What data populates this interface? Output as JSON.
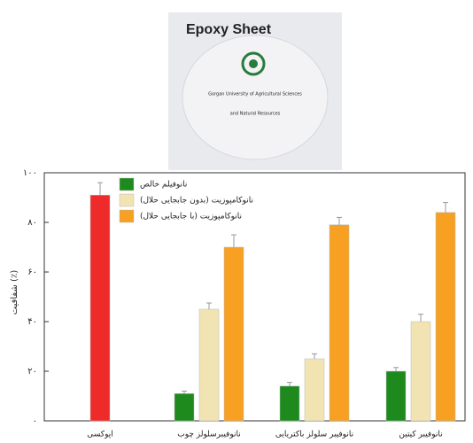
{
  "photo": {
    "title": "Epoxy Sheet",
    "caption": [
      "Gorgan University of Agricultural Sciences",
      "and Natural Resources"
    ]
  },
  "chart_data": {
    "type": "bar",
    "y_label": "شفافیت (٪)",
    "categories": [
      "اپوکسی",
      "نانوفیبرسلولز چوب",
      "نانوفیبر سلولز باکتریایی",
      "نانوفیبر کیتین"
    ],
    "epoxy": {
      "value": 91,
      "error": 5,
      "color": "#ee2a2a"
    },
    "series": [
      {
        "name": "نانوفیلم خالص",
        "color": "#1e8a1e",
        "values": [
          null,
          11,
          14,
          20
        ],
        "errors": [
          null,
          1,
          1.5,
          1.5
        ]
      },
      {
        "name": "(بدون جابجایی حلال) نانوکامپوزیت",
        "color": "#f1e3b2",
        "values": [
          null,
          45,
          25,
          40
        ],
        "errors": [
          null,
          2.5,
          2,
          3
        ]
      },
      {
        "name": "(با جابجایی حلال) نانوکامپوزیت",
        "color": "#f7a021",
        "values": [
          null,
          70,
          79,
          84
        ],
        "errors": [
          null,
          5,
          3,
          4
        ]
      }
    ],
    "ylim": [
      0,
      100
    ],
    "yticks": [
      {
        "value": 0,
        "label": "۰"
      },
      {
        "value": 20,
        "label": "۲۰"
      },
      {
        "value": 40,
        "label": "۴۰"
      },
      {
        "value": 60,
        "label": "۶۰"
      },
      {
        "value": 80,
        "label": "۸۰"
      },
      {
        "value": 100,
        "label": "۱۰۰"
      }
    ]
  }
}
